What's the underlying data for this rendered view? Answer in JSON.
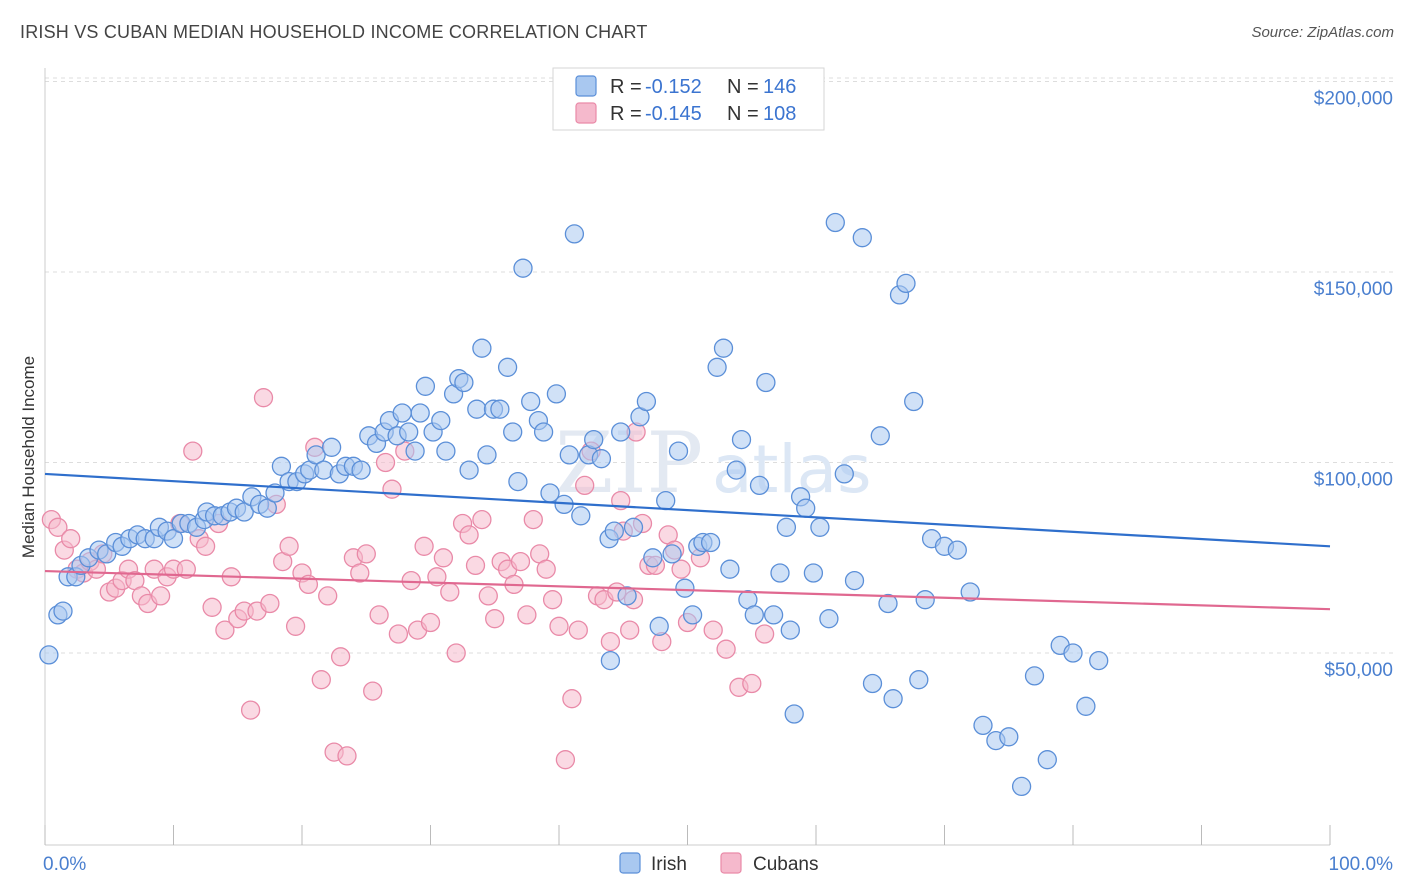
{
  "title": "IRISH VS CUBAN MEDIAN HOUSEHOLD INCOME CORRELATION CHART",
  "source": "Source: ZipAtlas.com",
  "colors": {
    "irish_fill": "#a9c8f0",
    "irish_stroke": "#5b8fd8",
    "irish_line": "#2f6fcc",
    "cubans_fill": "#f5b9cc",
    "cubans_stroke": "#e98aa8",
    "cubans_line": "#e06890",
    "tick_text": "#4a7fcf",
    "grid": "#dddddd"
  },
  "legend": {
    "rows": [
      {
        "r_label": "R = ",
        "r_value": "-0.152",
        "n_label": "N = ",
        "n_value": "146"
      },
      {
        "r_label": "R = ",
        "r_value": "-0.145",
        "n_label": "N = ",
        "n_value": "108"
      }
    ]
  },
  "bottom_legend": [
    "Irish",
    "Cubans"
  ],
  "chart_data": {
    "type": "scatter",
    "title": "IRISH VS CUBAN MEDIAN HOUSEHOLD INCOME CORRELATION CHART",
    "xlabel": "",
    "ylabel": "Median Household Income",
    "xlim": [
      0,
      100
    ],
    "ylim": [
      5000,
      210000
    ],
    "x_tick_labels": [
      "0.0%",
      "100.0%"
    ],
    "y_ticks": [
      50000,
      100000,
      150000,
      200000
    ],
    "y_tick_labels": [
      "$50,000",
      "$100,000",
      "$150,000",
      "$200,000"
    ],
    "grid": "horizontal dashed",
    "legend_position": "top-center",
    "series": [
      {
        "name": "Irish",
        "r": -0.152,
        "n": 146,
        "trend": {
          "x": [
            0,
            100
          ],
          "y": [
            97000,
            78000
          ]
        },
        "points": [
          [
            0.3,
            49500
          ],
          [
            1.0,
            60000
          ],
          [
            1.4,
            61000
          ],
          [
            1.8,
            70000
          ],
          [
            2.4,
            70000
          ],
          [
            2.8,
            73000
          ],
          [
            3.4,
            75000
          ],
          [
            4.2,
            77000
          ],
          [
            4.8,
            76000
          ],
          [
            5.5,
            79000
          ],
          [
            6.0,
            78000
          ],
          [
            6.6,
            80000
          ],
          [
            7.2,
            81000
          ],
          [
            7.8,
            80000
          ],
          [
            8.5,
            80000
          ],
          [
            8.9,
            83000
          ],
          [
            9.5,
            82000
          ],
          [
            10.0,
            80000
          ],
          [
            10.6,
            84000
          ],
          [
            11.2,
            84000
          ],
          [
            11.8,
            83000
          ],
          [
            12.4,
            85000
          ],
          [
            12.6,
            87000
          ],
          [
            13.2,
            86000
          ],
          [
            13.8,
            86000
          ],
          [
            14.4,
            87000
          ],
          [
            14.9,
            88000
          ],
          [
            15.5,
            87000
          ],
          [
            16.1,
            91000
          ],
          [
            16.7,
            89000
          ],
          [
            17.3,
            88000
          ],
          [
            17.9,
            92000
          ],
          [
            18.4,
            99000
          ],
          [
            19.0,
            95000
          ],
          [
            19.6,
            95000
          ],
          [
            20.2,
            97000
          ],
          [
            20.6,
            98000
          ],
          [
            21.1,
            102000
          ],
          [
            21.7,
            98000
          ],
          [
            22.3,
            104000
          ],
          [
            22.9,
            97000
          ],
          [
            23.4,
            99000
          ],
          [
            24.0,
            99000
          ],
          [
            24.6,
            98000
          ],
          [
            25.2,
            107000
          ],
          [
            25.8,
            105000
          ],
          [
            26.4,
            108000
          ],
          [
            26.8,
            111000
          ],
          [
            27.4,
            107000
          ],
          [
            27.8,
            113000
          ],
          [
            28.3,
            108000
          ],
          [
            28.8,
            103000
          ],
          [
            29.2,
            113000
          ],
          [
            29.6,
            120000
          ],
          [
            30.2,
            108000
          ],
          [
            30.8,
            111000
          ],
          [
            31.2,
            103000
          ],
          [
            31.8,
            118000
          ],
          [
            32.2,
            122000
          ],
          [
            32.6,
            121000
          ],
          [
            33.0,
            98000
          ],
          [
            33.6,
            114000
          ],
          [
            34.0,
            130000
          ],
          [
            34.4,
            102000
          ],
          [
            34.9,
            114000
          ],
          [
            35.4,
            114000
          ],
          [
            36.0,
            125000
          ],
          [
            36.4,
            108000
          ],
          [
            36.8,
            95000
          ],
          [
            37.2,
            151000
          ],
          [
            37.8,
            116000
          ],
          [
            38.4,
            111000
          ],
          [
            38.8,
            108000
          ],
          [
            39.3,
            92000
          ],
          [
            39.8,
            118000
          ],
          [
            40.4,
            89000
          ],
          [
            40.8,
            102000
          ],
          [
            41.2,
            160000
          ],
          [
            41.7,
            86000
          ],
          [
            42.3,
            102000
          ],
          [
            42.7,
            106000
          ],
          [
            43.3,
            101000
          ],
          [
            43.9,
            80000
          ],
          [
            44.3,
            82000
          ],
          [
            44.8,
            108000
          ],
          [
            45.3,
            65000
          ],
          [
            45.8,
            83000
          ],
          [
            46.3,
            112000
          ],
          [
            46.8,
            116000
          ],
          [
            47.3,
            75000
          ],
          [
            47.8,
            57000
          ],
          [
            48.3,
            90000
          ],
          [
            48.8,
            76000
          ],
          [
            49.3,
            103000
          ],
          [
            49.8,
            67000
          ],
          [
            50.4,
            60000
          ],
          [
            50.8,
            78000
          ],
          [
            51.2,
            79000
          ],
          [
            51.8,
            79000
          ],
          [
            52.3,
            125000
          ],
          [
            52.8,
            130000
          ],
          [
            53.3,
            72000
          ],
          [
            53.8,
            98000
          ],
          [
            54.2,
            106000
          ],
          [
            54.7,
            64000
          ],
          [
            55.2,
            60000
          ],
          [
            55.6,
            94000
          ],
          [
            56.1,
            121000
          ],
          [
            56.7,
            60000
          ],
          [
            57.2,
            71000
          ],
          [
            57.7,
            83000
          ],
          [
            58.3,
            34000
          ],
          [
            58.8,
            91000
          ],
          [
            59.2,
            88000
          ],
          [
            59.8,
            71000
          ],
          [
            60.3,
            83000
          ],
          [
            61.0,
            59000
          ],
          [
            61.5,
            163000
          ],
          [
            62.2,
            97000
          ],
          [
            63.0,
            69000
          ],
          [
            63.6,
            159000
          ],
          [
            64.4,
            42000
          ],
          [
            65.0,
            107000
          ],
          [
            65.6,
            63000
          ],
          [
            66.0,
            38000
          ],
          [
            66.5,
            144000
          ],
          [
            67.0,
            147000
          ],
          [
            67.6,
            116000
          ],
          [
            68.0,
            43000
          ],
          [
            68.5,
            64000
          ],
          [
            69.0,
            80000
          ],
          [
            70.0,
            78000
          ],
          [
            71.0,
            77000
          ],
          [
            72.0,
            66000
          ],
          [
            73.0,
            31000
          ],
          [
            74.0,
            27000
          ],
          [
            75.0,
            28000
          ],
          [
            76.0,
            15000
          ],
          [
            77.0,
            44000
          ],
          [
            78.0,
            22000
          ],
          [
            79.0,
            52000
          ],
          [
            80.0,
            50000
          ],
          [
            81.0,
            36000
          ],
          [
            82.0,
            48000
          ],
          [
            44.0,
            48000
          ],
          [
            58.0,
            56000
          ]
        ]
      },
      {
        "name": "Cubans",
        "r": -0.145,
        "n": 108,
        "trend": {
          "x": [
            0,
            100
          ],
          "y": [
            71500,
            61500
          ]
        },
        "points": [
          [
            0.5,
            85000
          ],
          [
            1.0,
            83000
          ],
          [
            1.5,
            77000
          ],
          [
            2.0,
            80000
          ],
          [
            2.5,
            72000
          ],
          [
            3.0,
            71000
          ],
          [
            3.5,
            74000
          ],
          [
            4.0,
            72000
          ],
          [
            4.5,
            76000
          ],
          [
            5.0,
            66000
          ],
          [
            5.5,
            67000
          ],
          [
            6.0,
            69000
          ],
          [
            6.5,
            72000
          ],
          [
            7.0,
            69000
          ],
          [
            7.5,
            65000
          ],
          [
            8.0,
            63000
          ],
          [
            8.5,
            72000
          ],
          [
            9.0,
            65000
          ],
          [
            9.5,
            70000
          ],
          [
            10.0,
            72000
          ],
          [
            10.5,
            84000
          ],
          [
            11.0,
            72000
          ],
          [
            11.5,
            103000
          ],
          [
            12.0,
            80000
          ],
          [
            12.5,
            78000
          ],
          [
            13.0,
            62000
          ],
          [
            13.5,
            84000
          ],
          [
            14.0,
            56000
          ],
          [
            14.5,
            70000
          ],
          [
            15.0,
            59000
          ],
          [
            15.5,
            61000
          ],
          [
            16.0,
            35000
          ],
          [
            16.5,
            61000
          ],
          [
            17.0,
            117000
          ],
          [
            17.5,
            63000
          ],
          [
            18.0,
            89000
          ],
          [
            18.5,
            74000
          ],
          [
            19.0,
            78000
          ],
          [
            19.5,
            57000
          ],
          [
            20.0,
            71000
          ],
          [
            20.5,
            68000
          ],
          [
            21.0,
            104000
          ],
          [
            21.5,
            43000
          ],
          [
            22.0,
            65000
          ],
          [
            22.5,
            24000
          ],
          [
            23.0,
            49000
          ],
          [
            23.5,
            23000
          ],
          [
            24.0,
            75000
          ],
          [
            24.5,
            71000
          ],
          [
            25.0,
            76000
          ],
          [
            25.5,
            40000
          ],
          [
            26.0,
            60000
          ],
          [
            26.5,
            100000
          ],
          [
            27.0,
            93000
          ],
          [
            27.5,
            55000
          ],
          [
            28.0,
            103000
          ],
          [
            28.5,
            69000
          ],
          [
            29.0,
            56000
          ],
          [
            29.5,
            78000
          ],
          [
            30.0,
            58000
          ],
          [
            30.5,
            70000
          ],
          [
            31.0,
            75000
          ],
          [
            31.5,
            66000
          ],
          [
            32.0,
            50000
          ],
          [
            32.5,
            84000
          ],
          [
            33.0,
            81000
          ],
          [
            33.5,
            73000
          ],
          [
            34.0,
            85000
          ],
          [
            34.5,
            65000
          ],
          [
            35.0,
            59000
          ],
          [
            35.5,
            74000
          ],
          [
            36.0,
            72000
          ],
          [
            36.5,
            68000
          ],
          [
            37.0,
            74000
          ],
          [
            37.5,
            60000
          ],
          [
            38.0,
            85000
          ],
          [
            38.5,
            76000
          ],
          [
            39.0,
            72000
          ],
          [
            39.5,
            64000
          ],
          [
            40.0,
            57000
          ],
          [
            40.5,
            22000
          ],
          [
            41.0,
            38000
          ],
          [
            41.5,
            56000
          ],
          [
            42.0,
            94000
          ],
          [
            42.5,
            103000
          ],
          [
            43.0,
            65000
          ],
          [
            43.5,
            64000
          ],
          [
            44.0,
            53000
          ],
          [
            44.5,
            66000
          ],
          [
            45.0,
            82000
          ],
          [
            45.5,
            56000
          ],
          [
            46.0,
            108000
          ],
          [
            46.5,
            84000
          ],
          [
            47.0,
            73000
          ],
          [
            47.5,
            73000
          ],
          [
            48.0,
            53000
          ],
          [
            48.5,
            81000
          ],
          [
            49.0,
            77000
          ],
          [
            49.5,
            72000
          ],
          [
            50.0,
            58000
          ],
          [
            51.0,
            75000
          ],
          [
            52.0,
            56000
          ],
          [
            53.0,
            51000
          ],
          [
            54.0,
            41000
          ],
          [
            55.0,
            42000
          ],
          [
            56.0,
            55000
          ],
          [
            44.8,
            90000
          ],
          [
            45.8,
            64000
          ]
        ]
      }
    ]
  }
}
